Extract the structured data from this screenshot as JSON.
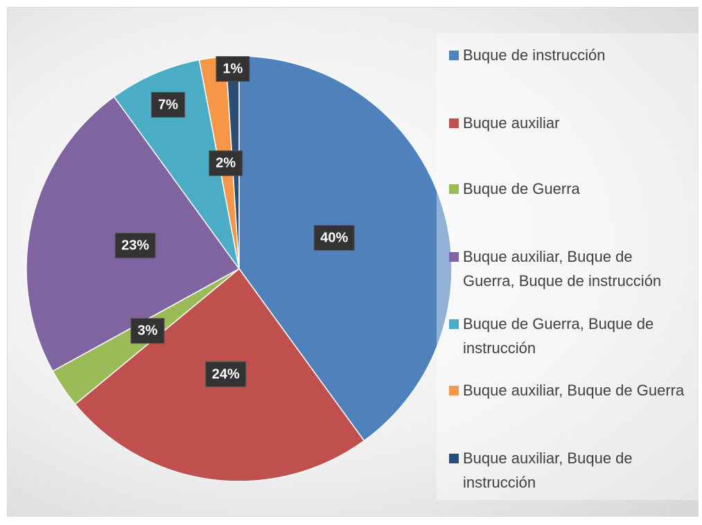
{
  "chart_data": {
    "type": "pie",
    "categories": [
      "Buque de instrucción",
      "Buque auxiliar",
      "Buque de Guerra",
      "Buque auxiliar, Buque de Guerra, Buque de instrucción",
      "Buque de Guerra, Buque de instrucción",
      "Buque auxiliar, Buque de Guerra",
      "Buque auxiliar, Buque de instrucción"
    ],
    "values": [
      40,
      24,
      3,
      23,
      7,
      2,
      1
    ],
    "value_labels": [
      "40%",
      "24%",
      "3%",
      "23%",
      "7%",
      "2%",
      "1%"
    ],
    "colors": [
      "#4f81bd",
      "#c0504d",
      "#9bbb59",
      "#8064a2",
      "#4bacc6",
      "#f79646",
      "#2c4d75"
    ],
    "legend": "right"
  }
}
